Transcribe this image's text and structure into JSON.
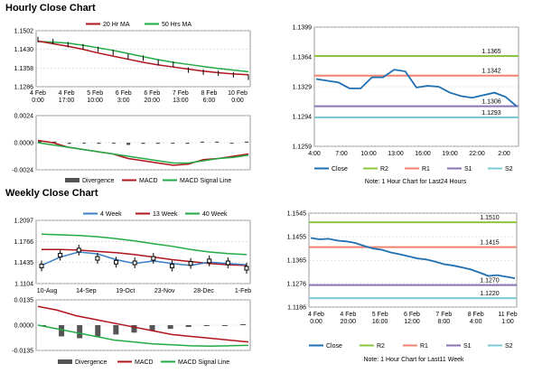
{
  "sections": {
    "hourly_title": "Hourly Close Chart",
    "weekly_title": "Weekly Close Chart"
  },
  "colors": {
    "ma20": "#b0141c",
    "ma50": "#22aa44",
    "price": "#000000",
    "close": "#1f6fb0",
    "r2": "#8cc63f",
    "r1": "#f0826e",
    "s1": "#8a72b6",
    "s2": "#7cc8d8",
    "divergence": "#555555",
    "macd": "#b0141c",
    "signal": "#22aa44",
    "grid": "#cccccc",
    "ma4": "#3b7fc4",
    "ma13": "#b0141c",
    "ma40": "#22aa44"
  },
  "chart_data": [
    {
      "id": "hourly_price",
      "type": "line",
      "legend": [
        "20 Hr MA",
        "50 Hrs MA"
      ],
      "x_ticks": [
        "4 Feb\n0:00",
        "4 Feb\n17:00",
        "5 Feb\n10:00",
        "6 Feb\n3:00",
        "6 Feb\n20:00",
        "7 Feb\n13:00",
        "8 Feb\n6:00",
        "10 Feb\n0:00"
      ],
      "y_ticks": [
        "1.1502",
        "1.1430",
        "1.1358",
        "1.1286"
      ],
      "ylim": [
        1.1286,
        1.1502
      ],
      "series": [
        {
          "name": "50 Hrs MA",
          "color_key": "ma50",
          "values": [
            1.146,
            1.1458,
            1.1454,
            1.1446,
            1.1436,
            1.1426,
            1.1414,
            1.1402,
            1.139,
            1.138,
            1.1372,
            1.1364,
            1.1356,
            1.135,
            1.1344
          ]
        },
        {
          "name": "20 Hr MA",
          "color_key": "ma20",
          "values": [
            1.1462,
            1.1452,
            1.1442,
            1.143,
            1.1416,
            1.1404,
            1.1392,
            1.138,
            1.137,
            1.1362,
            1.1354,
            1.1346,
            1.134,
            1.1335,
            1.1332
          ]
        },
        {
          "name": "",
          "color_key": "price",
          "values": [
            1.1468,
            1.146,
            1.1448,
            1.144,
            1.143,
            1.1418,
            1.1402,
            1.1396,
            1.138,
            1.1372,
            1.135,
            1.1342,
            1.1338,
            1.1332,
            1.1322
          ]
        }
      ]
    },
    {
      "id": "hourly_macd",
      "type": "line",
      "legend": [
        "Divergence",
        "MACD",
        "MACD Signal Line"
      ],
      "y_ticks": [
        "0.0024",
        "0.0000",
        "-0.0024"
      ],
      "ylim": [
        -0.0024,
        0.0024
      ],
      "divergence": [
        0.0002,
        0.0001,
        -0.0001,
        0.0,
        -0.0001,
        0.0,
        -0.0002,
        -0.0001,
        -0.0001,
        0.0,
        -0.0001,
        0.0001,
        0.0001,
        0.0,
        0.0001
      ],
      "series": [
        {
          "name": "MACD",
          "color_key": "macd",
          "values": [
            0.0002,
            0.0,
            -0.0004,
            -0.0006,
            -0.0008,
            -0.001,
            -0.0014,
            -0.0016,
            -0.0018,
            -0.002,
            -0.0019,
            -0.0015,
            -0.0014,
            -0.0012,
            -0.001
          ]
        },
        {
          "name": "MACD Signal Line",
          "color_key": "signal",
          "values": [
            0.0,
            -0.0002,
            -0.0004,
            -0.0006,
            -0.0008,
            -0.001,
            -0.0012,
            -0.0014,
            -0.0016,
            -0.0018,
            -0.0018,
            -0.0016,
            -0.0014,
            -0.0013,
            -0.0011
          ]
        }
      ]
    },
    {
      "id": "hourly_pivot",
      "type": "line",
      "x_ticks": [
        "4:00",
        "7:00",
        "10:00",
        "13:00",
        "16:00",
        "19:00",
        "22:00",
        "2:00"
      ],
      "y_ticks": [
        "1.1399",
        "1.1364",
        "1.1329",
        "1.1294",
        "1.1259"
      ],
      "ylim": [
        1.1259,
        1.1399
      ],
      "levels": [
        {
          "name": "R2",
          "value": 1.1365,
          "label": "1.1365",
          "color_key": "r2"
        },
        {
          "name": "R1",
          "value": 1.1342,
          "label": "1.1342",
          "color_key": "r1"
        },
        {
          "name": "S1",
          "value": 1.1306,
          "label": "1.1306",
          "color_key": "s1"
        },
        {
          "name": "S2",
          "value": 1.1293,
          "label": "1.1293",
          "color_key": "s2"
        }
      ],
      "close": [
        1.1338,
        1.1336,
        1.1334,
        1.1327,
        1.1327,
        1.134,
        1.134,
        1.1349,
        1.1347,
        1.1328,
        1.133,
        1.1329,
        1.1322,
        1.1318,
        1.1316,
        1.1319,
        1.1322,
        1.1317,
        1.1306
      ],
      "legend": [
        "Close",
        "R2",
        "R1",
        "S1",
        "S2"
      ],
      "note": "Note: 1 Hour Chart for Last24 Hours"
    },
    {
      "id": "weekly_price",
      "type": "line",
      "legend": [
        "4 Week",
        "13 Week",
        "40 Week"
      ],
      "x_ticks": [
        "10-Aug",
        "14-Sep",
        "19-Oct",
        "23-Nov",
        "28-Dec",
        "1-Feb"
      ],
      "y_ticks": [
        "1.2097",
        "1.1766",
        "1.1435",
        "1.1104"
      ],
      "ylim": [
        1.1104,
        1.2097
      ],
      "series": [
        {
          "name": "40 Week",
          "color_key": "ma40",
          "values": [
            1.188,
            1.187,
            1.186,
            1.184,
            1.181,
            1.1775,
            1.173,
            1.169,
            1.164,
            1.16,
            1.1575,
            1.156
          ]
        },
        {
          "name": "13 Week",
          "color_key": "ma13",
          "values": [
            1.164,
            1.164,
            1.163,
            1.161,
            1.159,
            1.156,
            1.152,
            1.148,
            1.145,
            1.142,
            1.14,
            1.139
          ]
        },
        {
          "name": "4 Week",
          "color_key": "ma4",
          "values": [
            1.139,
            1.152,
            1.16,
            1.157,
            1.148,
            1.142,
            1.146,
            1.142,
            1.139,
            1.144,
            1.142,
            1.14
          ]
        },
        {
          "name": "",
          "color_key": "price",
          "values": [
            1.138,
            1.155,
            1.163,
            1.15,
            1.144,
            1.143,
            1.15,
            1.138,
            1.142,
            1.146,
            1.143,
            1.1345
          ]
        }
      ]
    },
    {
      "id": "weekly_macd",
      "type": "line",
      "legend": [
        "Divergence",
        "MACD",
        "MACD Signal Line"
      ],
      "y_ticks": [
        "0.0135",
        "0.0000",
        "-0.0135"
      ],
      "ylim": [
        -0.0135,
        0.0135
      ],
      "divergence": [
        0.0,
        -0.006,
        -0.007,
        -0.006,
        -0.005,
        -0.004,
        -0.003,
        -0.002,
        -0.001,
        -0.0005,
        0.0,
        0.0005
      ],
      "series": [
        {
          "name": "MACD",
          "color_key": "macd",
          "values": [
            0.01,
            0.008,
            0.005,
            0.003,
            0.001,
            -0.001,
            -0.003,
            -0.005,
            -0.006,
            -0.007,
            -0.008,
            -0.009
          ]
        },
        {
          "name": "MACD Signal Line",
          "color_key": "signal",
          "values": [
            0.0,
            -0.002,
            -0.004,
            -0.006,
            -0.008,
            -0.009,
            -0.01,
            -0.0105,
            -0.011,
            -0.0112,
            -0.011,
            -0.0108
          ]
        }
      ]
    },
    {
      "id": "weekly_pivot",
      "type": "line",
      "x_ticks": [
        "4 Feb\n0:00",
        "4 Feb\n20:00",
        "5 Feb\n16:00",
        "6 Feb\n12:00",
        "7 Feb\n8:00",
        "8 Feb\n4:00",
        "11 Feb\n1:00"
      ],
      "y_ticks": [
        "1.1545",
        "1.1455",
        "1.1365",
        "1.1276",
        "1.1186"
      ],
      "ylim": [
        1.1186,
        1.1545
      ],
      "levels": [
        {
          "name": "R2",
          "value": 1.151,
          "label": "1.1510",
          "color_key": "r2"
        },
        {
          "name": "R1",
          "value": 1.1415,
          "label": "1.1415",
          "color_key": "r1"
        },
        {
          "name": "S1",
          "value": 1.127,
          "label": "1.1270",
          "color_key": "s1"
        },
        {
          "name": "S2",
          "value": 1.122,
          "label": "1.1220",
          "color_key": "s2"
        }
      ],
      "close": [
        1.145,
        1.1445,
        1.1447,
        1.144,
        1.1437,
        1.1431,
        1.142,
        1.141,
        1.1405,
        1.1395,
        1.1388,
        1.138,
        1.1372,
        1.1368,
        1.136,
        1.135,
        1.1345,
        1.1338,
        1.133,
        1.1318,
        1.1305,
        1.1308,
        1.1302,
        1.1296
      ],
      "legend": [
        "Close",
        "R2",
        "R1",
        "S1",
        "S2"
      ],
      "note": "Note: 1 Hour Chart for Last11 Week"
    }
  ]
}
